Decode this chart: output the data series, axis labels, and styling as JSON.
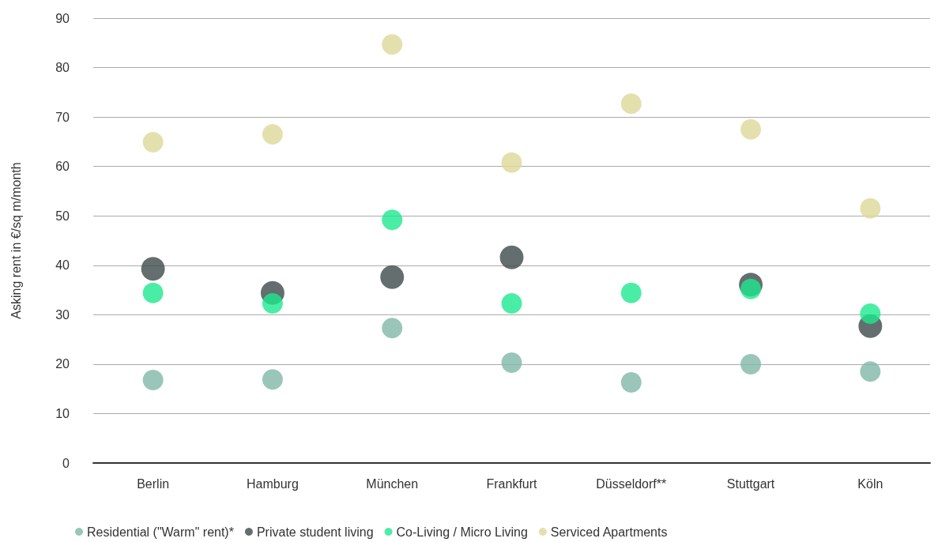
{
  "chart_data": {
    "type": "scatter",
    "ylabel": "Asking rent in €/sq m/month",
    "categories": [
      "Berlin",
      "Hamburg",
      "München",
      "Frankfurt",
      "Düsseldorf**",
      "Stuttgart",
      "Köln"
    ],
    "series": [
      {
        "name": "Residential (\"Warm\" rent)*",
        "color": "#7fb8a8",
        "values": [
          16.8,
          16.9,
          27.3,
          20.3,
          16.3,
          20.0,
          18.5
        ]
      },
      {
        "name": "Private student living",
        "color": "#3d4a4a",
        "values": [
          39.3,
          34.4,
          37.6,
          41.6,
          null,
          36.1,
          27.7
        ]
      },
      {
        "name": "Co-Living / Micro Living",
        "color": "#1de88e",
        "values": [
          34.4,
          32.3,
          49.2,
          32.3,
          34.4,
          35.2,
          30.2
        ]
      },
      {
        "name": "Serviced Apartments",
        "color": "#dcd89a",
        "values": [
          64.9,
          66.5,
          84.7,
          60.8,
          72.7,
          67.5,
          51.5
        ]
      }
    ],
    "ylim": [
      0,
      90
    ],
    "yticks": [
      0,
      10,
      20,
      30,
      40,
      50,
      60,
      70,
      80,
      90
    ],
    "grid": "y",
    "legend": "bottom",
    "marker": "circle"
  }
}
